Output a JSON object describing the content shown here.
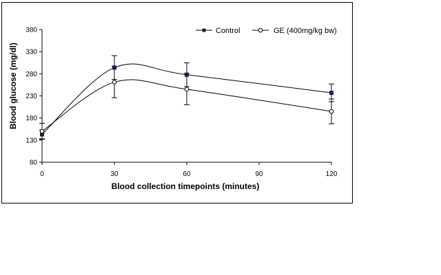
{
  "chart_data": {
    "type": "line",
    "xlabel": "Blood collection timepoints (minutes)",
    "ylabel": "Blood glucose (mg/dl)",
    "x_ticks": [
      0,
      30,
      60,
      90,
      120
    ],
    "y_ticks": [
      80,
      130,
      180,
      230,
      280,
      330,
      380
    ],
    "xlim": [
      0,
      120
    ],
    "ylim": [
      80,
      380
    ],
    "grid": false,
    "legend_position": "top-right",
    "x": [
      0,
      30,
      60,
      120
    ],
    "series": [
      {
        "name": "Control",
        "marker": "filled-square",
        "values": [
          143,
          294,
          278,
          237
        ],
        "error": [
          10,
          27,
          27,
          20
        ],
        "color": "#000000",
        "marker_color": "#1a1a4e"
      },
      {
        "name": "GE (400mg/kg bw)",
        "marker": "open-circle",
        "values": [
          150,
          261,
          245,
          195
        ],
        "error": [
          18,
          35,
          35,
          28
        ],
        "color": "#000000",
        "marker_color": "#000000"
      }
    ]
  }
}
